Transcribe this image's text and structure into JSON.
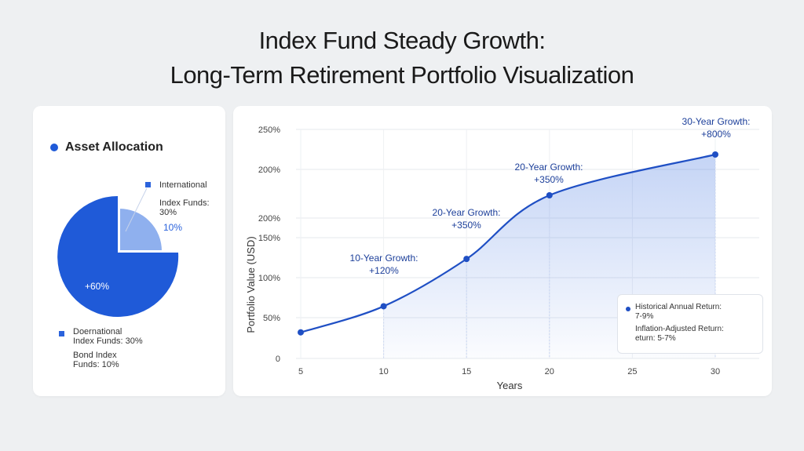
{
  "title_line1": "Index Fund Steady Growth:",
  "title_line2": "Long-Term Retirement Portfolio Visualization",
  "allocation": {
    "heading": "Asset Allocation",
    "intl_label_1": "International",
    "intl_label_2": "Index Funds:",
    "intl_label_3": "30%",
    "small_slice_pct": "10%",
    "large_slice_pct": "+60%",
    "dom_label_1": "Doernational",
    "dom_label_2": "Index Funds: 30%",
    "bond_label_1": "Bond Index",
    "bond_label_2": "Funds: 10%",
    "colors": {
      "primary": "#1f5ad8",
      "light": "#8fb0ee"
    }
  },
  "chart_data": {
    "type": "line",
    "ylabel": "Portfolio Value (USD)",
    "xlabel": "Years",
    "x_ticks": [
      "5",
      "10",
      "15",
      "20",
      "25",
      "30"
    ],
    "y_ticks": [
      "0",
      "50%",
      "100%",
      "150%",
      "200%",
      "200%",
      "250%"
    ],
    "series": [
      {
        "x": [
          5,
          10,
          15,
          20,
          30
        ],
        "y": [
          0.32,
          0.64,
          1.22,
          2.0,
          2.5
        ]
      }
    ],
    "annotations": [
      {
        "line1": "10-Year Growth:",
        "line2": "+120%"
      },
      {
        "line1": "20-Year Growth:",
        "line2": "+350%"
      },
      {
        "line1": "20-Year Growth:",
        "line2": "+350%"
      },
      {
        "line1": "30-Year Growth:",
        "line2": "+800%"
      }
    ],
    "legend": {
      "line1": "Historical Annual Return:",
      "line2": "7-9%",
      "line3": "Inflation-Adjusted Return:",
      "line4": "eturn: 5-7%"
    },
    "color": "#1f4fc4"
  }
}
